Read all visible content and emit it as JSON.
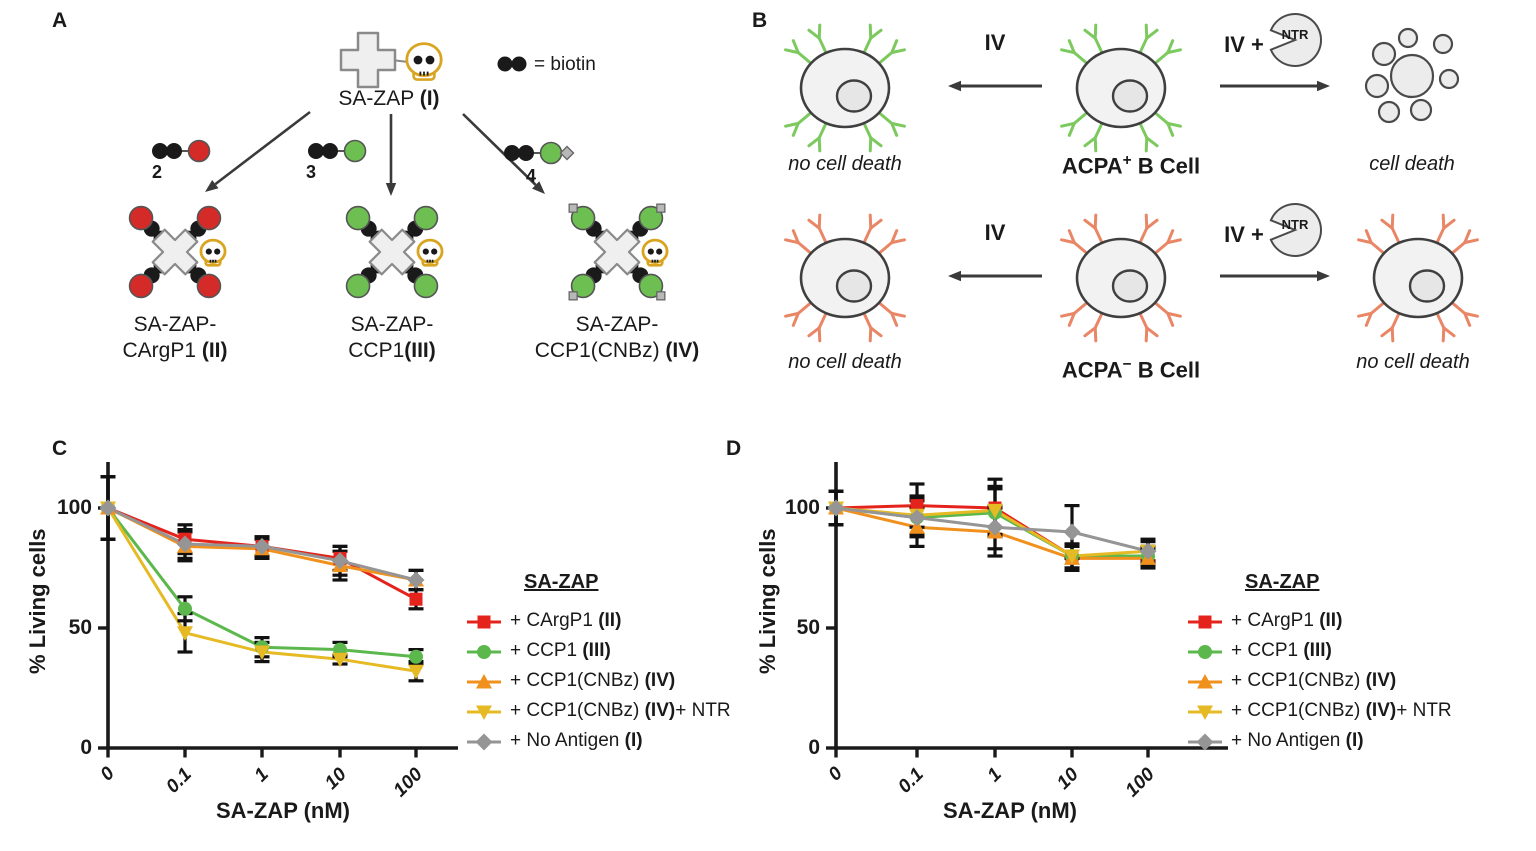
{
  "panelA": {
    "label": "A",
    "sa_zap_label": "SA-ZAP (I)",
    "biotin_legend": "= biotin",
    "reagents": [
      {
        "number": "2",
        "ball_color": "#d42a28",
        "has_tip": false
      },
      {
        "number": "3",
        "ball_color": "#6cbf50",
        "has_tip": false
      },
      {
        "number": "4",
        "ball_color": "#6cbf50",
        "has_tip": true
      }
    ],
    "conjugates": [
      {
        "line1": "SA-ZAP-",
        "line2": "CArgP1 (II)",
        "ball_color": "#d42a28",
        "has_tips": false
      },
      {
        "line1": "SA-ZAP-",
        "line2": "CCP1(III)",
        "ball_color": "#6cbf50",
        "has_tips": false
      },
      {
        "line1": "SA-ZAP-",
        "line2": "CCP1(CNBz) (IV)",
        "ball_color": "#6cbf50",
        "has_tips": true
      }
    ]
  },
  "panelB": {
    "label": "B",
    "rows": [
      {
        "antibody_color": "#7cc95e",
        "left_outcome": "no cell death",
        "left_arrow_label": "IV",
        "cell_base": "ACPA",
        "cell_sup": "+",
        "cell_suffix": " B Cell",
        "right_arrow_label": "IV +",
        "enzyme_label": "NTR",
        "right_outcome": "cell death",
        "right_result": "lysed"
      },
      {
        "antibody_color": "#e88666",
        "left_outcome": "no cell death",
        "left_arrow_label": "IV",
        "cell_base": "ACPA",
        "cell_sup": "−",
        "cell_suffix": " B Cell",
        "right_arrow_label": "IV +",
        "enzyme_label": "NTR",
        "right_outcome": "no cell death",
        "right_result": "intact"
      }
    ]
  },
  "chart_data": [
    {
      "id": "C",
      "panel_label": "C",
      "type": "line",
      "xlabel": "SA-ZAP (nM)",
      "ylabel": "% Living cells",
      "x_ticklabels": [
        "0",
        "0.1",
        "1",
        "10",
        "100"
      ],
      "y_ticks": [
        100,
        50,
        0
      ],
      "ylim": [
        0,
        119
      ],
      "legend_title": "SA-ZAP",
      "legend_position": "right",
      "grid": false,
      "series": [
        {
          "name": "+ CArgP1 (II)",
          "marker": "square",
          "color": "#e4231c",
          "values": [
            100,
            87,
            84,
            79,
            62
          ],
          "errors": [
            13,
            6,
            4,
            5,
            4
          ]
        },
        {
          "name": "+ CCP1 (III)",
          "marker": "circle",
          "color": "#5cb84c",
          "values": [
            100,
            58,
            42,
            41,
            38
          ],
          "errors": [
            13,
            5,
            4,
            3,
            3
          ]
        },
        {
          "name": "+ CCP1(CNBz) (IV)",
          "marker": "triangle-up",
          "color": "#f0911e",
          "values": [
            100,
            84,
            83,
            76,
            70
          ],
          "errors": [
            13,
            6,
            4,
            6,
            4
          ]
        },
        {
          "name": "+ CCP1(CNBz) (IV)+ NTR",
          "marker": "triangle-down",
          "color": "#e6ba24",
          "values": [
            100,
            48,
            40,
            37,
            32
          ],
          "errors": [
            13,
            8,
            4,
            2,
            4
          ]
        },
        {
          "name": "+ No Antigen (I)",
          "marker": "diamond",
          "color": "#959595",
          "values": [
            100,
            85,
            84,
            78,
            70
          ],
          "errors": [
            13,
            6,
            4,
            6,
            4
          ]
        }
      ]
    },
    {
      "id": "D",
      "panel_label": "D",
      "type": "line",
      "xlabel": "SA-ZAP (nM)",
      "ylabel": "% Living cells",
      "x_ticklabels": [
        "0",
        "0.1",
        "1",
        "10",
        "100"
      ],
      "y_ticks": [
        100,
        50,
        0
      ],
      "ylim": [
        0,
        119
      ],
      "legend_title": "SA-ZAP",
      "legend_position": "right",
      "grid": false,
      "series": [
        {
          "name": "+ CArgP1 (II)",
          "marker": "square",
          "color": "#e4231c",
          "values": [
            100,
            101,
            100,
            80,
            80
          ],
          "errors": [
            7,
            9,
            12,
            5,
            4
          ]
        },
        {
          "name": "+ CCP1 (III)",
          "marker": "circle",
          "color": "#5cb84c",
          "values": [
            100,
            96,
            98,
            80,
            80
          ],
          "errors": [
            7,
            8,
            10,
            5,
            4
          ]
        },
        {
          "name": "+ CCP1(CNBz) (IV)",
          "marker": "triangle-up",
          "color": "#f0911e",
          "values": [
            100,
            92,
            90,
            79,
            79
          ],
          "errors": [
            7,
            8,
            10,
            5,
            4
          ]
        },
        {
          "name": "+ CCP1(CNBz) (IV)+ NTR",
          "marker": "triangle-down",
          "color": "#e6ba24",
          "values": [
            100,
            97,
            99,
            80,
            82
          ],
          "errors": [
            7,
            8,
            10,
            5,
            4
          ]
        },
        {
          "name": "+ No Antigen (I)",
          "marker": "diamond",
          "color": "#959595",
          "values": [
            100,
            96,
            92,
            90,
            82
          ],
          "errors": [
            7,
            7,
            9,
            11,
            5
          ]
        }
      ]
    }
  ]
}
